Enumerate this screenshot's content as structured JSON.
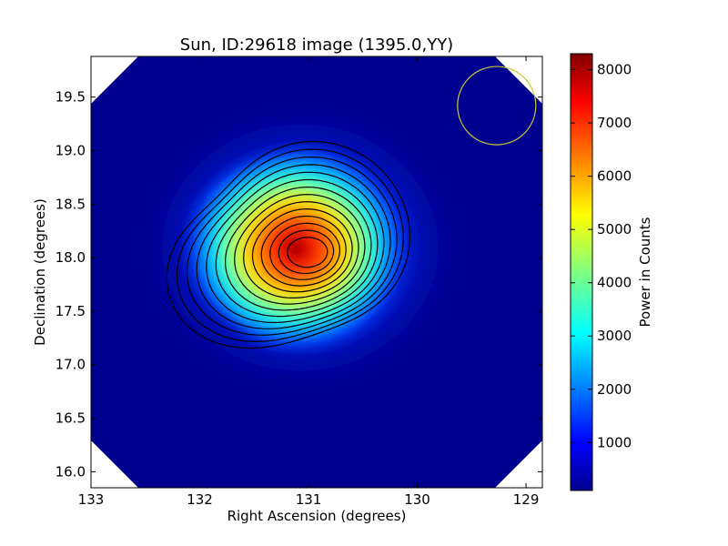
{
  "chart_data": {
    "type": "heatmap",
    "title": "Sun, ID:29618 image (1395.0,YY)",
    "xlabel": "Right Ascension (degrees)",
    "ylabel": "Declination (degrees)",
    "xlim": [
      133.0,
      128.85
    ],
    "ylim": [
      15.85,
      19.88
    ],
    "x_ticks": [
      133,
      132,
      131,
      130,
      129
    ],
    "x_tick_labels": [
      "133",
      "132",
      "131",
      "130",
      "129"
    ],
    "y_ticks": [
      16.0,
      16.5,
      17.0,
      17.5,
      18.0,
      18.5,
      19.0,
      19.5
    ],
    "y_tick_labels": [
      "16.0",
      "16.5",
      "17.0",
      "17.5",
      "18.0",
      "18.5",
      "19.0",
      "19.5"
    ],
    "colorbar": {
      "label": "Power in Counts",
      "colormap": "jet",
      "range": [
        100,
        8300
      ],
      "ticks": [
        1000,
        2000,
        3000,
        4000,
        5000,
        6000,
        7000,
        8000
      ],
      "tick_labels": [
        "1000",
        "2000",
        "3000",
        "4000",
        "5000",
        "6000",
        "7000",
        "8000"
      ]
    },
    "source": {
      "peak_ra": 131.0,
      "peak_dec": 18.05,
      "peak_value": 8250,
      "background_value": 200
    },
    "contour_count": 14,
    "contour_color": "#000000",
    "beam_circle": {
      "center_ra": 129.27,
      "center_dec": 19.42,
      "radius_deg": 0.36,
      "color": "#c8c832"
    },
    "blank_corners": true
  }
}
